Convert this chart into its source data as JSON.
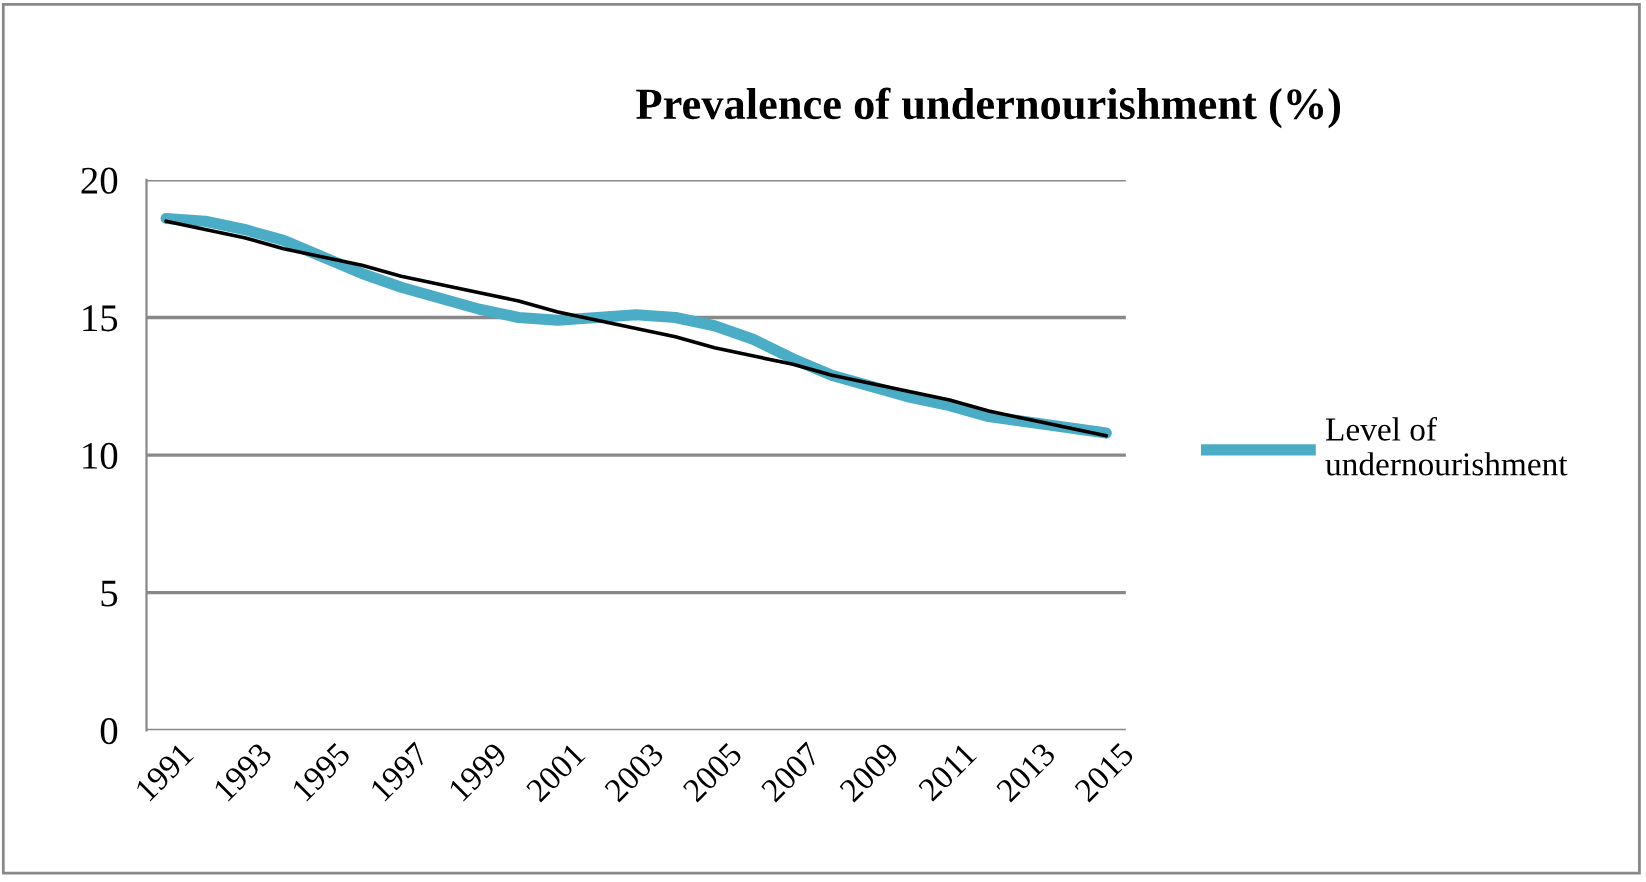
{
  "chart_data": {
    "type": "line",
    "title": "Prevalence of undernourishment (%)",
    "categories": [
      "1991",
      null,
      "1993",
      null,
      "1995",
      null,
      "1997",
      null,
      "1999",
      null,
      "2001",
      null,
      "2003",
      null,
      "2005",
      null,
      "2007",
      null,
      "2009",
      null,
      "2011",
      null,
      "2013",
      null,
      "2015"
    ],
    "series": [
      {
        "name": "Level of undernourishment",
        "color": "#4bacc6",
        "values": [
          18.6,
          18.5,
          18.2,
          17.8,
          17.2,
          16.6,
          16.1,
          15.7,
          15.3,
          15.0,
          14.9,
          15.0,
          15.1,
          15.0,
          14.7,
          14.2,
          13.5,
          12.9,
          12.5,
          12.1,
          11.8,
          11.4,
          11.2,
          11.0,
          10.8
        ]
      },
      {
        "type": "line",
        "color": "#000000",
        "values": [
          18.5,
          18.2,
          17.9,
          17.5,
          17.2,
          16.9,
          16.5,
          16.2,
          15.9,
          15.6,
          15.2,
          14.9,
          14.6,
          14.3,
          13.9,
          13.6,
          13.3,
          12.9,
          12.6,
          12.3,
          12.0,
          11.6,
          11.3,
          11.0,
          10.7
        ]
      }
    ],
    "ylim": [
      0,
      20
    ],
    "yticks": [
      0,
      5,
      10,
      15,
      20
    ],
    "grid": "y",
    "legend": "right",
    "marker": "none",
    "line_style": "solid"
  }
}
